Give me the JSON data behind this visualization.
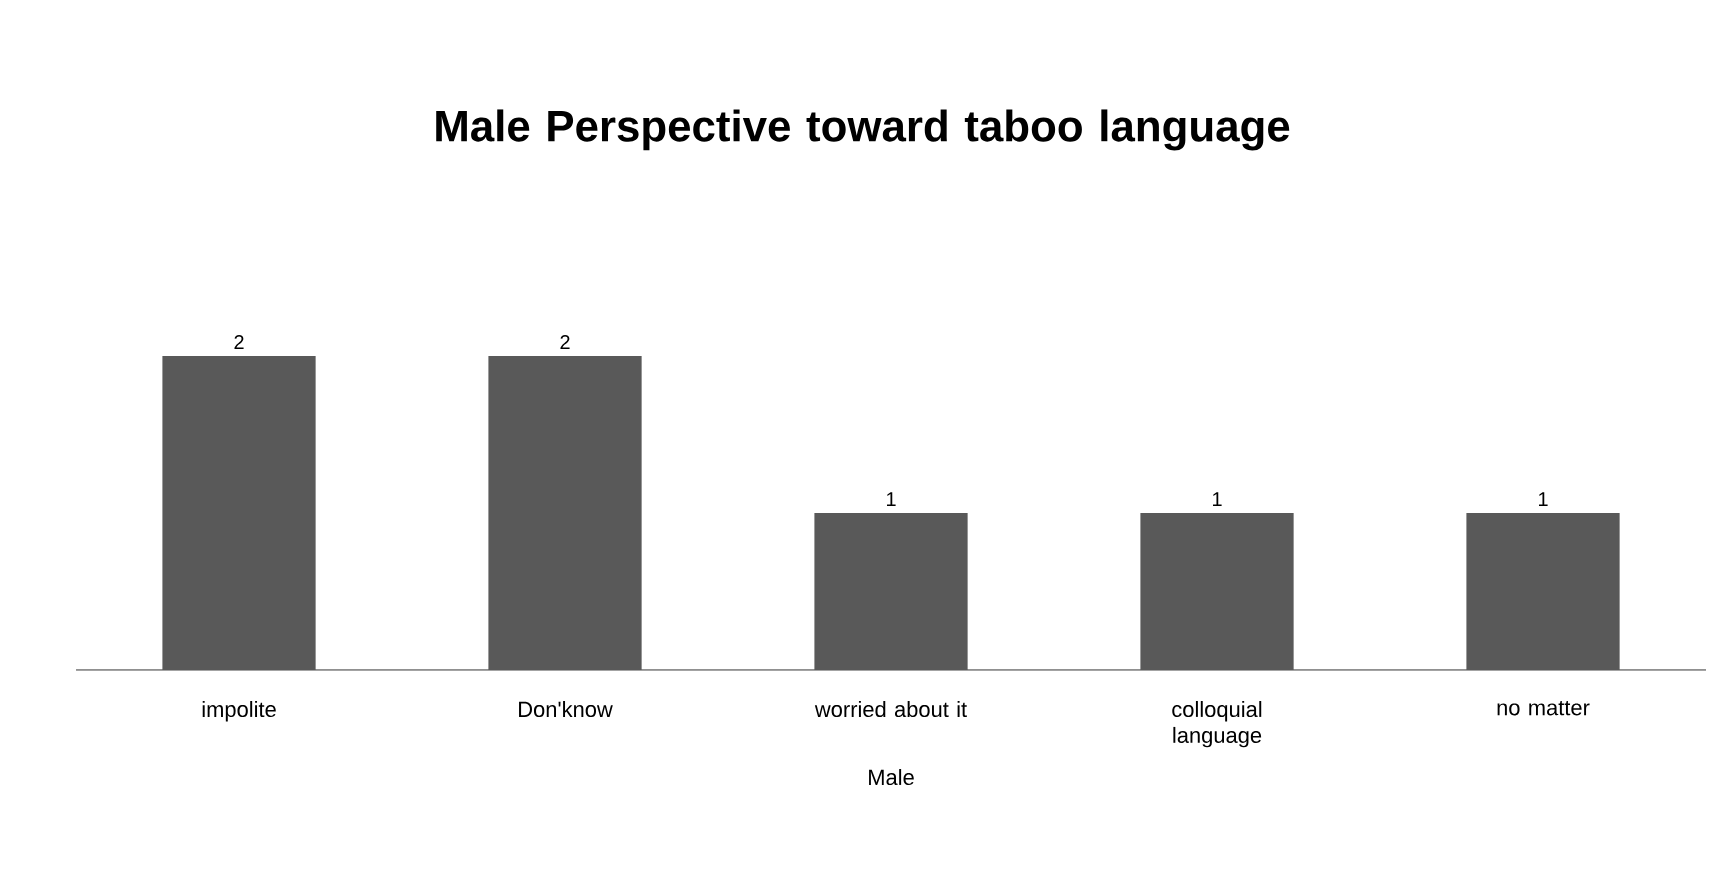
{
  "chart_data": {
    "type": "bar",
    "title": "Male Perspective toward taboo language",
    "xlabel": "Male",
    "categories": [
      "impolite",
      "Don'know",
      "worried about it",
      "colloquial language",
      "no matter"
    ],
    "values": [
      2,
      2,
      1,
      1,
      1
    ],
    "color": "#595959",
    "data_labels": true
  }
}
